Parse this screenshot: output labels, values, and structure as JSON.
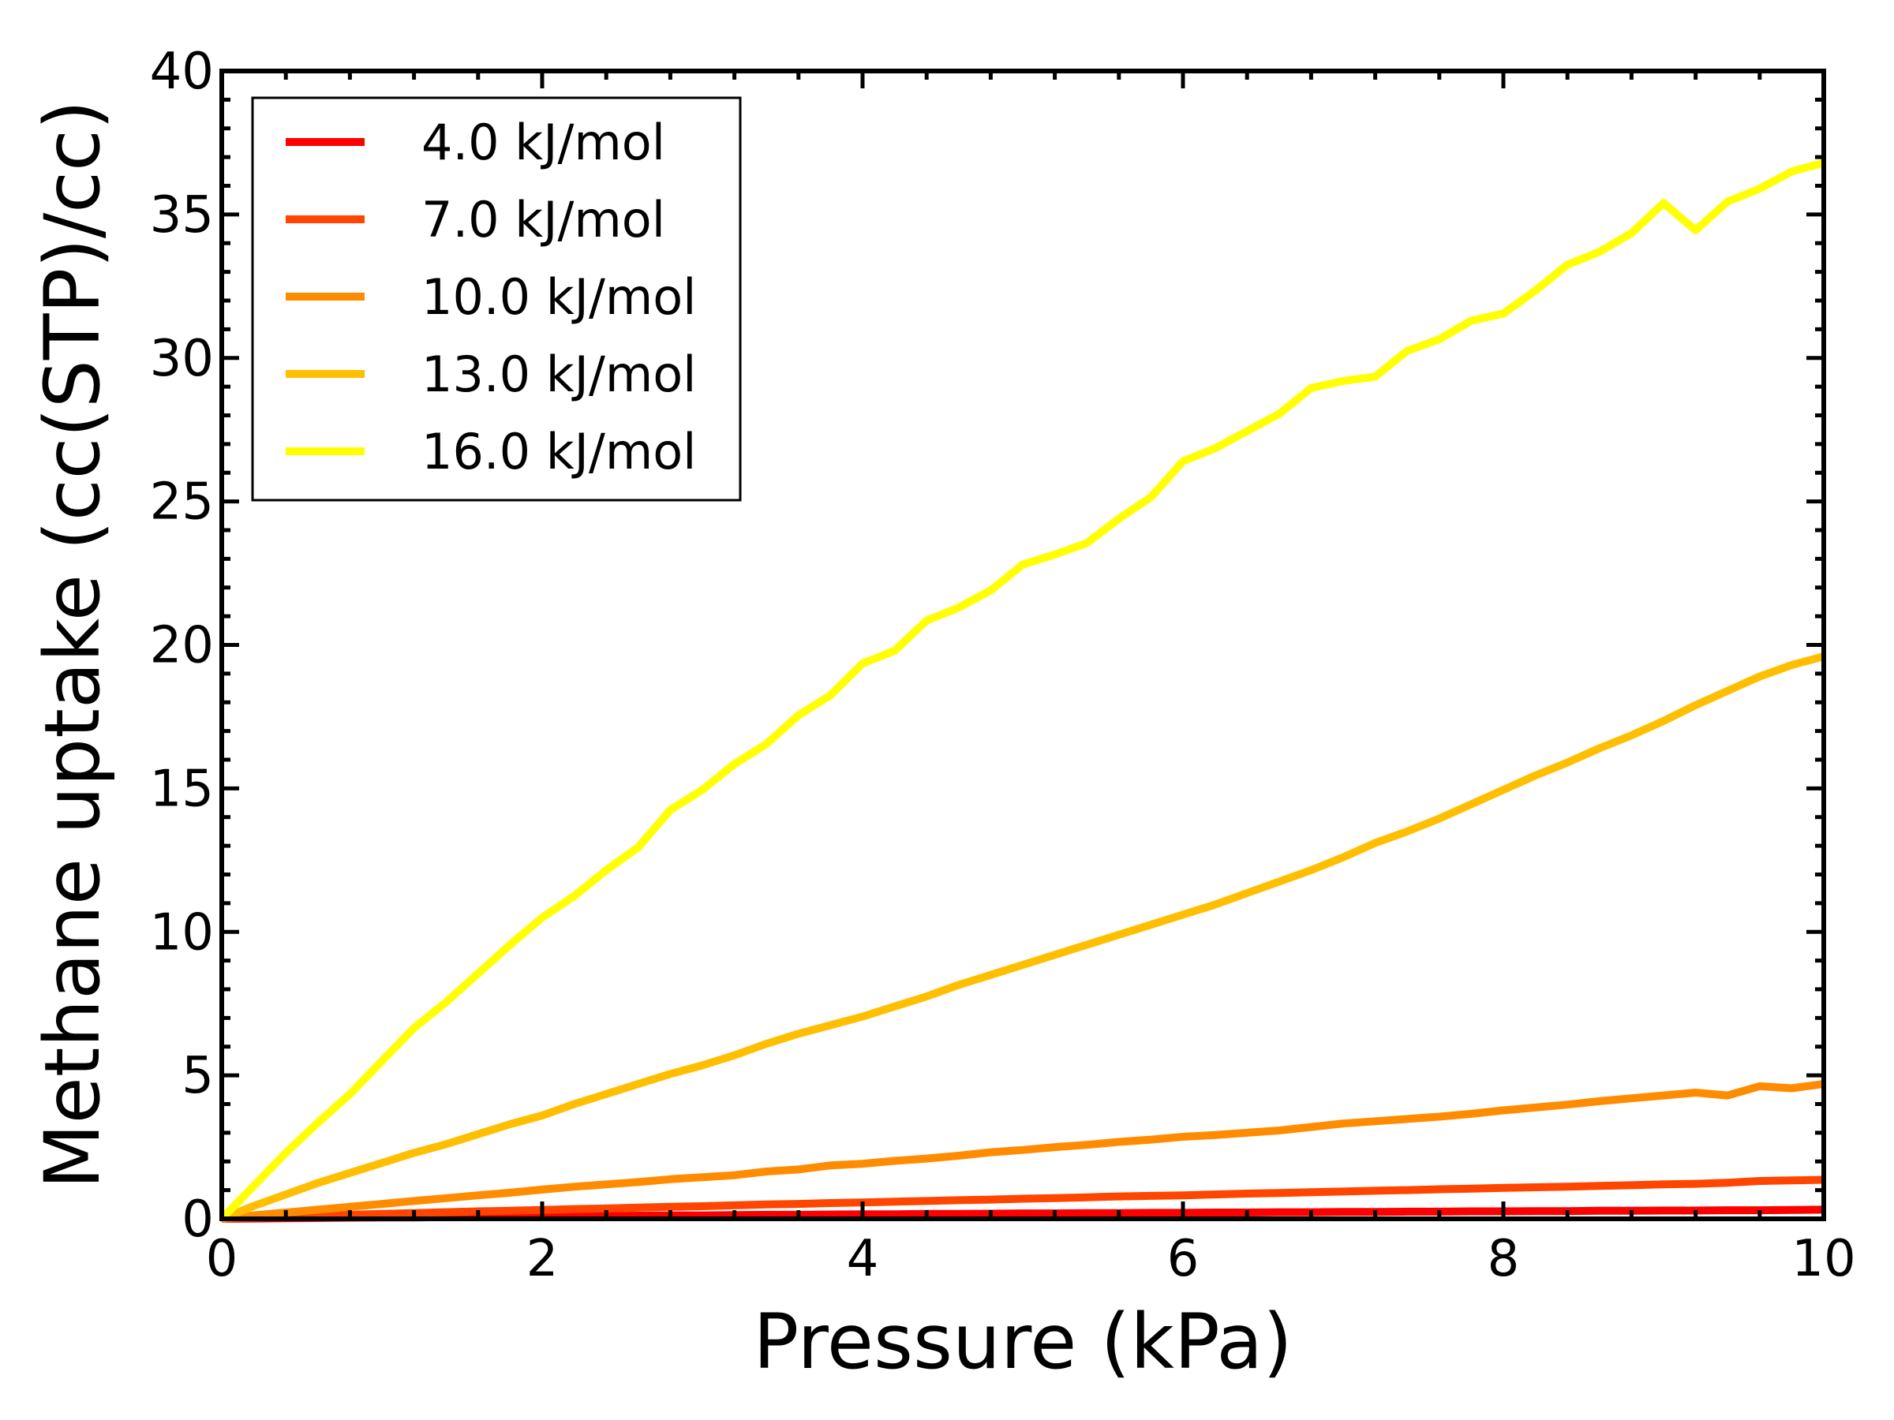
{
  "chart_data": {
    "type": "line",
    "xlabel": "Pressure (kPa)",
    "ylabel": "Methane uptake (cc(STP)/cc)",
    "xlim": [
      0,
      10
    ],
    "ylim": [
      0,
      40
    ],
    "xticks": [
      "0",
      "2",
      "4",
      "6",
      "8",
      "10"
    ],
    "yticks": [
      "0",
      "5",
      "10",
      "15",
      "20",
      "25",
      "30",
      "35",
      "40"
    ],
    "grid": false,
    "legend_position": "top-left",
    "x": [
      0,
      0.2,
      0.4,
      0.6,
      0.8,
      1.0,
      1.2,
      1.4,
      1.6,
      1.8,
      2.0,
      2.2,
      2.4,
      2.6,
      2.8,
      3.0,
      3.2,
      3.4,
      3.6,
      3.8,
      4.0,
      4.2,
      4.4,
      4.6,
      4.8,
      5.0,
      5.2,
      5.4,
      5.6,
      5.8,
      6.0,
      6.2,
      6.4,
      6.6,
      6.8,
      7.0,
      7.2,
      7.4,
      7.6,
      7.8,
      8.0,
      8.2,
      8.4,
      8.6,
      8.8,
      9.0,
      9.2,
      9.4,
      9.6,
      9.8,
      10.0
    ],
    "series": [
      {
        "name": "4.0 kJ/mol",
        "color": "#ff0000",
        "values": [
          0,
          0.01,
          0.02,
          0.03,
          0.04,
          0.05,
          0.05,
          0.06,
          0.07,
          0.08,
          0.09,
          0.09,
          0.1,
          0.11,
          0.12,
          0.12,
          0.13,
          0.14,
          0.14,
          0.15,
          0.16,
          0.16,
          0.17,
          0.17,
          0.18,
          0.19,
          0.19,
          0.2,
          0.2,
          0.21,
          0.21,
          0.22,
          0.22,
          0.23,
          0.23,
          0.24,
          0.24,
          0.25,
          0.25,
          0.26,
          0.26,
          0.27,
          0.27,
          0.28,
          0.28,
          0.29,
          0.29,
          0.3,
          0.3,
          0.31,
          0.32
        ]
      },
      {
        "name": "7.0 kJ/mol",
        "color": "#ff4500",
        "values": [
          0,
          0.04,
          0.08,
          0.11,
          0.14,
          0.17,
          0.2,
          0.23,
          0.26,
          0.28,
          0.31,
          0.34,
          0.36,
          0.39,
          0.42,
          0.44,
          0.47,
          0.5,
          0.52,
          0.55,
          0.57,
          0.6,
          0.62,
          0.65,
          0.67,
          0.7,
          0.72,
          0.75,
          0.78,
          0.8,
          0.82,
          0.85,
          0.88,
          0.9,
          0.93,
          0.95,
          0.98,
          1.0,
          1.03,
          1.05,
          1.08,
          1.1,
          1.12,
          1.15,
          1.17,
          1.2,
          1.22,
          1.26,
          1.32,
          1.34,
          1.36
        ]
      },
      {
        "name": "10.0 kJ/mol",
        "color": "#ff8c00",
        "values": [
          0,
          0.12,
          0.22,
          0.32,
          0.42,
          0.52,
          0.62,
          0.72,
          0.82,
          0.91,
          1.02,
          1.12,
          1.2,
          1.28,
          1.38,
          1.45,
          1.52,
          1.65,
          1.72,
          1.86,
          1.92,
          2.02,
          2.1,
          2.2,
          2.32,
          2.4,
          2.5,
          2.58,
          2.68,
          2.76,
          2.86,
          2.92,
          3.0,
          3.08,
          3.2,
          3.32,
          3.4,
          3.48,
          3.56,
          3.66,
          3.78,
          3.88,
          3.98,
          4.1,
          4.2,
          4.3,
          4.4,
          4.3,
          4.62,
          4.55,
          4.7
        ]
      },
      {
        "name": "13.0 kJ/mol",
        "color": "#ffbf00",
        "values": [
          0,
          0.45,
          0.85,
          1.25,
          1.6,
          1.95,
          2.3,
          2.6,
          2.95,
          3.3,
          3.6,
          4.0,
          4.35,
          4.7,
          5.05,
          5.35,
          5.7,
          6.1,
          6.45,
          6.75,
          7.05,
          7.4,
          7.75,
          8.15,
          8.5,
          8.85,
          9.2,
          9.55,
          9.9,
          10.25,
          10.6,
          10.95,
          11.35,
          11.75,
          12.15,
          12.6,
          13.1,
          13.5,
          13.95,
          14.45,
          14.95,
          15.45,
          15.9,
          16.4,
          16.85,
          17.35,
          17.9,
          18.4,
          18.9,
          19.3,
          19.6
        ]
      },
      {
        "name": "16.0 kJ/mol",
        "color": "#ffff00",
        "values": [
          0,
          1.15,
          2.3,
          3.35,
          4.35,
          5.5,
          6.65,
          7.55,
          8.55,
          9.55,
          10.5,
          11.25,
          12.15,
          12.95,
          14.25,
          14.95,
          15.85,
          16.55,
          17.55,
          18.25,
          19.35,
          19.8,
          20.85,
          21.3,
          21.9,
          22.8,
          23.15,
          23.55,
          24.4,
          25.15,
          26.4,
          26.85,
          27.45,
          28.05,
          28.95,
          29.2,
          29.35,
          30.25,
          30.65,
          31.3,
          31.55,
          32.35,
          33.25,
          33.7,
          34.35,
          35.4,
          34.45,
          35.45,
          35.9,
          36.5,
          36.8
        ]
      }
    ]
  }
}
